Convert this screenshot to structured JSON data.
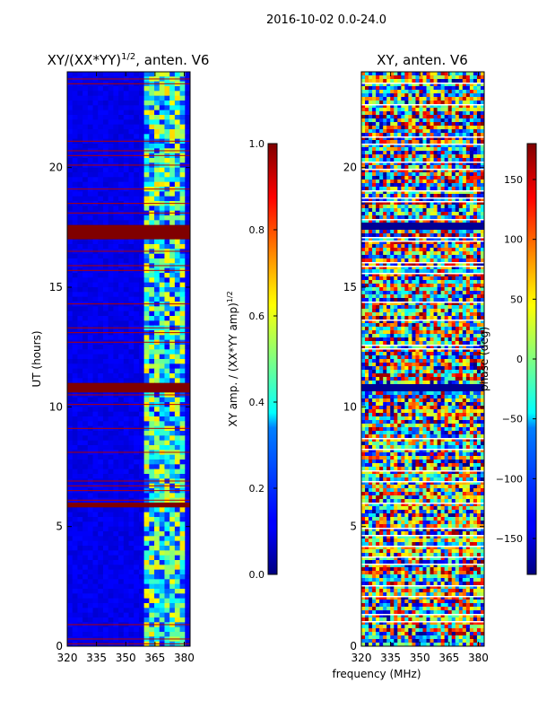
{
  "figure": {
    "suptitle": "2016-10-02 0.0-24.0",
    "xlabel": "frequency (MHz)"
  },
  "chart_data": [
    {
      "type": "heatmap",
      "title": "XY/(XX*YY)",
      "title_exponent": "1/2",
      "title_suffix": ", anten. V6",
      "xlabel": "",
      "ylabel": "UT (hours)",
      "xlim": [
        320,
        383
      ],
      "ylim": [
        0,
        24
      ],
      "xticks": [
        "320",
        "335",
        "350",
        "365",
        "380"
      ],
      "yticks": [
        "0",
        "5",
        "10",
        "15",
        "20"
      ],
      "colormap": "jet",
      "colorbar": {
        "label": "XY amp. / (XX*YY amp)",
        "label_exponent": "1/2",
        "range": [
          0.0,
          1.0
        ],
        "ticks": [
          "0.0",
          "0.2",
          "0.4",
          "0.6",
          "0.8",
          "1.0"
        ]
      },
      "features": {
        "background_level": 0.08,
        "active_band_mhz": [
          360,
          381
        ],
        "active_band_level": 0.45,
        "saturated_bands_hours": [
          [
            17.0,
            17.6
          ],
          [
            10.7,
            10.95
          ],
          [
            5.7,
            5.95
          ],
          [
            2.1,
            2.25
          ]
        ]
      }
    },
    {
      "type": "heatmap",
      "title": "XY, anten. V6",
      "xlabel": "",
      "ylabel": "",
      "xlim": [
        320,
        383
      ],
      "ylim": [
        0,
        24
      ],
      "xticks": [
        "320",
        "335",
        "350",
        "365",
        "380"
      ],
      "yticks": [
        "0",
        "5",
        "10",
        "15",
        "20"
      ],
      "colormap": "jet",
      "colorbar": {
        "label": "phase (deg)",
        "range": [
          -180,
          180
        ],
        "ticks": [
          "−150",
          "−100",
          "−50",
          "0",
          "50",
          "100",
          "150"
        ]
      },
      "features": {
        "note": "random phase noise across full band",
        "blank_bands_hours": [
          [
            17.4,
            17.7
          ],
          [
            10.6,
            10.9
          ]
        ]
      }
    }
  ]
}
